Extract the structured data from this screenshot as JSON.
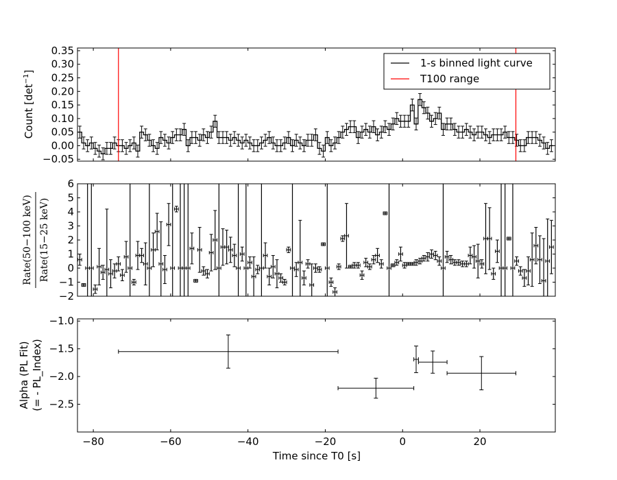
{
  "chart_data": [
    {
      "type": "line",
      "panel": "light-curve",
      "ylabel": "Count [det",
      "ylabel_sup": "−1",
      "ylabel_end": "]",
      "xlim": [
        -84.1,
        39.5
      ],
      "ylim": [
        -0.057,
        0.36
      ],
      "yticks": [
        -0.05,
        0.0,
        0.05,
        0.1,
        0.15,
        0.2,
        0.25,
        0.3,
        0.35
      ],
      "ytick_labels": [
        "−0.05",
        "0.00",
        "0.05",
        "0.10",
        "0.15",
        "0.20",
        "0.25",
        "0.30",
        "0.35"
      ],
      "xticks": [
        -80,
        -60,
        -40,
        -20,
        0,
        20
      ],
      "bin_width": 1,
      "t_start": -84,
      "counts": [
        0.05,
        0.01,
        0.0,
        0.01,
        -0.01,
        -0.02,
        -0.03,
        -0.01,
        -0.01,
        0.01,
        0.0,
        0.0,
        -0.01,
        0.0,
        0.01,
        -0.02,
        0.05,
        0.04,
        0.02,
        0.0,
        -0.01,
        0.03,
        0.02,
        0.01,
        0.03,
        0.04,
        0.04,
        0.06,
        0.0,
        0.03,
        0.03,
        0.02,
        0.04,
        0.03,
        0.05,
        0.09,
        0.03,
        0.03,
        0.03,
        0.02,
        0.03,
        0.02,
        0.01,
        0.02,
        0.01,
        0.0,
        0.0,
        0.01,
        0.02,
        0.03,
        0.01,
        0.0,
        0.0,
        0.01,
        0.03,
        0.0,
        0.02,
        0.01,
        0.0,
        0.02,
        0.02,
        0.04,
        -0.01,
        -0.02,
        0.03,
        0.0,
        0.01,
        0.03,
        0.05,
        0.06,
        0.07,
        0.07,
        0.03,
        0.05,
        0.06,
        0.05,
        0.07,
        0.04,
        0.05,
        0.07,
        0.06,
        0.08,
        0.1,
        0.09,
        0.09,
        0.09,
        0.15,
        0.08,
        0.17,
        0.14,
        0.12,
        0.09,
        0.1,
        0.12,
        0.06,
        0.08,
        0.08,
        0.06,
        0.05,
        0.05,
        0.06,
        0.05,
        0.04,
        0.05,
        0.05,
        0.04,
        0.03,
        0.04,
        0.04,
        0.04,
        0.05,
        0.03,
        0.03,
        0.02,
        0.0,
        0.0,
        0.03,
        0.03,
        0.03,
        0.02,
        0.01,
        -0.01,
        0.0
      ],
      "count_err": 0.022,
      "legend": {
        "placement": "top-right",
        "entries": [
          {
            "label": "1-s binned light curve",
            "color": "#000000"
          },
          {
            "label": "T100 range",
            "color": "#ff0000"
          }
        ]
      },
      "t100_range": [
        -73.5,
        29.3
      ],
      "t100_color": "#ff0000"
    },
    {
      "type": "scatter",
      "panel": "hardness-ratio",
      "ylabel_num": "Rate(50−100 keV)",
      "ylabel_den": "Rate(15−25 keV)",
      "xlim": [
        -84.1,
        39.5
      ],
      "ylim": [
        -2,
        6
      ],
      "yticks": [
        -2,
        -1,
        0,
        1,
        2,
        3,
        4,
        5,
        6
      ],
      "ytick_labels": [
        "−2",
        "−1",
        "0",
        "1",
        "2",
        "3",
        "4",
        "5",
        "6"
      ],
      "t_start": -84,
      "bin_width": 1,
      "values": [
        0.6,
        -1.2,
        0,
        0,
        -1.5,
        0.1,
        -0.3,
        -0.1,
        -0.4,
        -0.2,
        0.3,
        -0.5,
        0.8,
        0,
        -1,
        0.9,
        0.9,
        0.3,
        0,
        1.3,
        2.6,
        0.3,
        -0.1,
        3.1,
        0,
        4.2,
        0,
        0,
        0,
        1.4,
        -0.9,
        1.3,
        -0.2,
        -0.4,
        1.1,
        2,
        0,
        1.5,
        1.5,
        1.3,
        0.9,
        0,
        1,
        0,
        0.4,
        -0.6,
        -0.1,
        0,
        0.9,
        -0.6,
        0.1,
        -0.4,
        -0.7,
        -1,
        1.3,
        0,
        -0.1,
        0.4,
        -0.7,
        0.3,
        -1.2,
        0,
        -0.1,
        1.7,
        0,
        -1,
        -1.7,
        0.1,
        2.1,
        2.3,
        0.1,
        0.2,
        0.2,
        -0.5,
        0.4,
        0.1,
        0.6,
        0.9,
        0.3,
        3.9,
        0,
        0.2,
        0.4,
        1,
        0.2,
        0.3,
        0.3,
        0.4,
        0.5,
        0.7,
        0.8,
        1,
        0.9,
        0.5,
        0,
        0.8,
        0.6,
        0.4,
        0.4,
        0.3,
        0.3,
        0.9,
        0.8,
        0.5,
        0.3,
        2.1,
        2.1,
        -0.4,
        1.2,
        0,
        0,
        2.1,
        0,
        0.5,
        -0.2,
        -0.7,
        -0.2,
        0.6,
        1.6,
        0.6,
        -0.9,
        0.5,
        1.5
      ],
      "errors": [
        0.4,
        0.1,
        20,
        20,
        0.3,
        1.3,
        0.5,
        4.3,
        1,
        0.5,
        0.5,
        0.4,
        1.1,
        20,
        0.2,
        1,
        0.5,
        1.5,
        20,
        1.2,
        1.3,
        3,
        1,
        1.5,
        20,
        0.2,
        20,
        20,
        20,
        1.1,
        0.1,
        1.6,
        0.3,
        0.3,
        1.3,
        2.1,
        20,
        1.3,
        1.2,
        0.9,
        0.8,
        20,
        0.5,
        20,
        0.4,
        1.4,
        0.3,
        20,
        0.9,
        0.6,
        0.8,
        1,
        0.3,
        0.2,
        0.2,
        20,
        0.5,
        3,
        0.5,
        0.3,
        1.5,
        0.3,
        0.2,
        0.1,
        20,
        0.3,
        0.3,
        0.2,
        0.2,
        2.3,
        0.1,
        0.2,
        0.2,
        0.3,
        0.3,
        0.2,
        0.3,
        0.5,
        0.3,
        0.1,
        20,
        0.1,
        0.2,
        0.5,
        0.2,
        0.1,
        0.1,
        0.2,
        0.2,
        0.2,
        0.3,
        0.3,
        0.3,
        0.3,
        20,
        0.4,
        0.3,
        0.2,
        0.2,
        0.2,
        0.2,
        0.6,
        0.8,
        1.2,
        0.3,
        2.5,
        2.2,
        0.4,
        0.8,
        20,
        20,
        0.1,
        20,
        0.3,
        0.3,
        0.6,
        1,
        1.9,
        1.3,
        1.7,
        3,
        3,
        1.9
      ]
    },
    {
      "type": "scatter",
      "panel": "alpha",
      "ylabel_line1": "Alpha (PL Fit)",
      "ylabel_line2": "(= - PL_Index)",
      "xlabel": "Time since T0 [s]",
      "xlim": [
        -84.1,
        39.5
      ],
      "ylim": [
        -3.0,
        -0.96
      ],
      "y_inverted": true,
      "yticks": [
        -1.0,
        -1.5,
        -2.0,
        -2.5
      ],
      "ytick_labels": [
        "−1.0",
        "−1.5",
        "−2.0",
        "−2.5"
      ],
      "xticks": [
        -80,
        -60,
        -40,
        -20,
        0,
        20
      ],
      "xtick_labels": [
        "−80",
        "−60",
        "−40",
        "−20",
        "0",
        "20"
      ],
      "points": [
        {
          "x": -45.1,
          "xlo": -73.5,
          "xhi": -16.7,
          "y": -1.55,
          "yerr": 0.3
        },
        {
          "x": -6.9,
          "xlo": -16.7,
          "xhi": 2.9,
          "y": -2.21,
          "yerr": 0.18
        },
        {
          "x": 3.5,
          "xlo": 2.9,
          "xhi": 4.1,
          "y": -1.69,
          "yerr": 0.24
        },
        {
          "x": 7.8,
          "xlo": 4.1,
          "xhi": 11.5,
          "y": -1.74,
          "yerr": 0.2
        },
        {
          "x": 20.4,
          "xlo": 11.5,
          "xhi": 29.3,
          "y": -1.94,
          "yerr": 0.3
        }
      ]
    }
  ]
}
